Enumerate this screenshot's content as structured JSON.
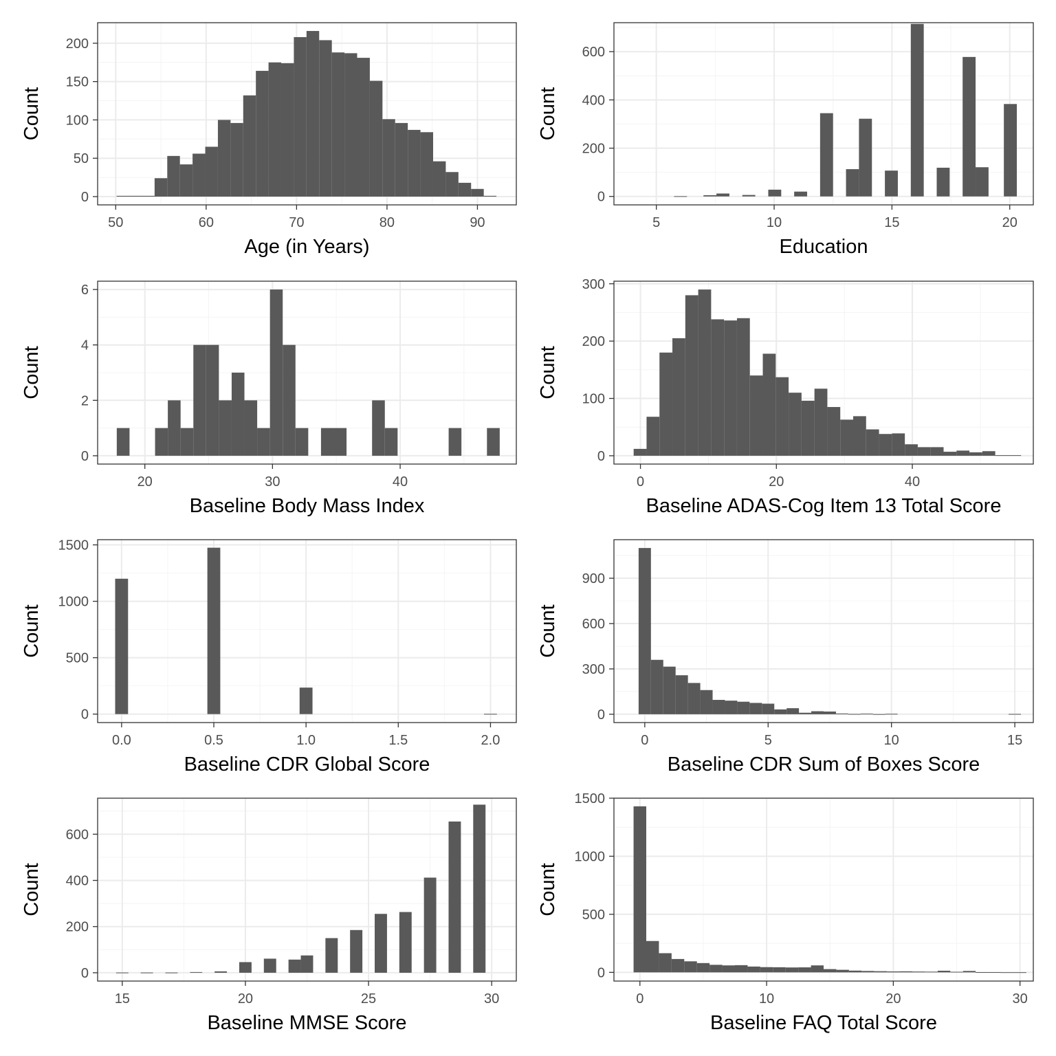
{
  "chart_data": [
    {
      "type": "bar",
      "xlabel": "Age (in Years)",
      "ylabel": "Count",
      "xlim": [
        48,
        94.3
      ],
      "ylim": [
        -10.8,
        226.8
      ],
      "x_ticks": [
        50,
        60,
        70,
        80,
        90
      ],
      "y_ticks": [
        0,
        50,
        100,
        150,
        200
      ],
      "grid": true,
      "bins": [
        {
          "x0": 50.1,
          "x1": 51.5,
          "count": 1
        },
        {
          "x0": 51.5,
          "x1": 52.9,
          "count": 1
        },
        {
          "x0": 52.9,
          "x1": 54.3,
          "count": 1
        },
        {
          "x0": 54.3,
          "x1": 55.7,
          "count": 24
        },
        {
          "x0": 55.7,
          "x1": 57.1,
          "count": 53
        },
        {
          "x0": 57.1,
          "x1": 58.5,
          "count": 42
        },
        {
          "x0": 58.5,
          "x1": 59.9,
          "count": 56
        },
        {
          "x0": 59.9,
          "x1": 61.3,
          "count": 65
        },
        {
          "x0": 61.3,
          "x1": 62.7,
          "count": 100
        },
        {
          "x0": 62.7,
          "x1": 64.1,
          "count": 96
        },
        {
          "x0": 64.1,
          "x1": 65.5,
          "count": 132
        },
        {
          "x0": 65.5,
          "x1": 66.9,
          "count": 164
        },
        {
          "x0": 66.9,
          "x1": 68.3,
          "count": 175
        },
        {
          "x0": 68.3,
          "x1": 69.7,
          "count": 174
        },
        {
          "x0": 69.7,
          "x1": 71.1,
          "count": 208
        },
        {
          "x0": 71.1,
          "x1": 72.5,
          "count": 216
        },
        {
          "x0": 72.5,
          "x1": 73.9,
          "count": 204
        },
        {
          "x0": 73.9,
          "x1": 75.3,
          "count": 188
        },
        {
          "x0": 75.3,
          "x1": 76.7,
          "count": 187
        },
        {
          "x0": 76.7,
          "x1": 78.1,
          "count": 181
        },
        {
          "x0": 78.1,
          "x1": 79.5,
          "count": 151
        },
        {
          "x0": 79.5,
          "x1": 80.9,
          "count": 101
        },
        {
          "x0": 80.9,
          "x1": 82.3,
          "count": 96
        },
        {
          "x0": 82.3,
          "x1": 83.7,
          "count": 87
        },
        {
          "x0": 83.7,
          "x1": 85.1,
          "count": 84
        },
        {
          "x0": 85.1,
          "x1": 86.5,
          "count": 46
        },
        {
          "x0": 86.5,
          "x1": 87.9,
          "count": 32
        },
        {
          "x0": 87.9,
          "x1": 89.3,
          "count": 18
        },
        {
          "x0": 89.3,
          "x1": 90.7,
          "count": 10
        },
        {
          "x0": 90.7,
          "x1": 92.1,
          "count": 1
        }
      ]
    },
    {
      "type": "bar",
      "xlabel": "Education",
      "ylabel": "Count",
      "xlim": [
        3.2,
        21
      ],
      "ylim": [
        -35,
        720
      ],
      "x_ticks": [
        5,
        10,
        15,
        20
      ],
      "y_ticks": [
        0,
        200,
        400,
        600
      ],
      "grid": true,
      "bins": [
        {
          "x0": 5.75,
          "x1": 6.3,
          "count": 1
        },
        {
          "x0": 7.0,
          "x1": 7.55,
          "count": 5
        },
        {
          "x0": 7.55,
          "x1": 8.1,
          "count": 12
        },
        {
          "x0": 8.65,
          "x1": 9.2,
          "count": 6
        },
        {
          "x0": 9.75,
          "x1": 10.3,
          "count": 28
        },
        {
          "x0": 10.85,
          "x1": 11.4,
          "count": 20
        },
        {
          "x0": 11.95,
          "x1": 12.5,
          "count": 345
        },
        {
          "x0": 13.05,
          "x1": 13.6,
          "count": 113
        },
        {
          "x0": 13.6,
          "x1": 14.15,
          "count": 322
        },
        {
          "x0": 14.7,
          "x1": 15.25,
          "count": 107
        },
        {
          "x0": 15.8,
          "x1": 16.35,
          "count": 715
        },
        {
          "x0": 16.9,
          "x1": 17.45,
          "count": 119
        },
        {
          "x0": 18.0,
          "x1": 18.55,
          "count": 578
        },
        {
          "x0": 18.55,
          "x1": 19.1,
          "count": 121
        },
        {
          "x0": 19.75,
          "x1": 20.3,
          "count": 383
        }
      ]
    },
    {
      "type": "bar",
      "xlabel": "Baseline Body Mass Index",
      "ylabel": "Count",
      "xlim": [
        16.3,
        49.1
      ],
      "ylim": [
        -0.3,
        6.3
      ],
      "x_ticks": [
        20,
        30,
        40
      ],
      "y_ticks": [
        0,
        2,
        4,
        6
      ],
      "grid": true,
      "bins": [
        {
          "x0": 17.8,
          "x1": 18.8,
          "count": 1
        },
        {
          "x0": 20.8,
          "x1": 21.8,
          "count": 1
        },
        {
          "x0": 21.8,
          "x1": 22.8,
          "count": 2
        },
        {
          "x0": 22.8,
          "x1": 23.8,
          "count": 1
        },
        {
          "x0": 23.8,
          "x1": 24.8,
          "count": 4
        },
        {
          "x0": 24.8,
          "x1": 25.8,
          "count": 4
        },
        {
          "x0": 25.8,
          "x1": 26.8,
          "count": 2
        },
        {
          "x0": 26.8,
          "x1": 27.8,
          "count": 3
        },
        {
          "x0": 27.8,
          "x1": 28.8,
          "count": 2
        },
        {
          "x0": 28.8,
          "x1": 29.8,
          "count": 1
        },
        {
          "x0": 29.8,
          "x1": 30.8,
          "count": 6
        },
        {
          "x0": 30.8,
          "x1": 31.8,
          "count": 4
        },
        {
          "x0": 31.8,
          "x1": 32.8,
          "count": 1
        },
        {
          "x0": 33.8,
          "x1": 34.8,
          "count": 1
        },
        {
          "x0": 34.8,
          "x1": 35.8,
          "count": 1
        },
        {
          "x0": 37.8,
          "x1": 38.8,
          "count": 2
        },
        {
          "x0": 38.8,
          "x1": 39.8,
          "count": 1
        },
        {
          "x0": 43.8,
          "x1": 44.8,
          "count": 1
        },
        {
          "x0": 46.8,
          "x1": 47.8,
          "count": 1
        }
      ]
    },
    {
      "type": "bar",
      "xlabel": "Baseline ADAS-Cog Item 13 Total Score",
      "ylabel": "Count",
      "xlim": [
        -3.9,
        57.8
      ],
      "ylim": [
        -14.5,
        304.5
      ],
      "x_ticks": [
        0,
        20,
        40
      ],
      "y_ticks": [
        0,
        100,
        200,
        300
      ],
      "grid": true,
      "bins": [
        {
          "x0": -1.0,
          "x1": 0.9,
          "count": 12
        },
        {
          "x0": 0.9,
          "x1": 2.8,
          "count": 68
        },
        {
          "x0": 2.8,
          "x1": 4.7,
          "count": 180
        },
        {
          "x0": 4.7,
          "x1": 6.6,
          "count": 205
        },
        {
          "x0": 6.6,
          "x1": 8.5,
          "count": 280
        },
        {
          "x0": 8.5,
          "x1": 10.4,
          "count": 290
        },
        {
          "x0": 10.4,
          "x1": 12.3,
          "count": 238
        },
        {
          "x0": 12.3,
          "x1": 14.2,
          "count": 236
        },
        {
          "x0": 14.2,
          "x1": 16.1,
          "count": 240
        },
        {
          "x0": 16.1,
          "x1": 18.0,
          "count": 140
        },
        {
          "x0": 18.0,
          "x1": 19.9,
          "count": 178
        },
        {
          "x0": 19.9,
          "x1": 21.8,
          "count": 137
        },
        {
          "x0": 21.8,
          "x1": 23.7,
          "count": 110
        },
        {
          "x0": 23.7,
          "x1": 25.6,
          "count": 96
        },
        {
          "x0": 25.6,
          "x1": 27.5,
          "count": 117
        },
        {
          "x0": 27.5,
          "x1": 29.4,
          "count": 85
        },
        {
          "x0": 29.4,
          "x1": 31.3,
          "count": 63
        },
        {
          "x0": 31.3,
          "x1": 33.2,
          "count": 69
        },
        {
          "x0": 33.2,
          "x1": 35.1,
          "count": 46
        },
        {
          "x0": 35.1,
          "x1": 37.0,
          "count": 38
        },
        {
          "x0": 37.0,
          "x1": 38.9,
          "count": 39
        },
        {
          "x0": 38.9,
          "x1": 40.8,
          "count": 20
        },
        {
          "x0": 40.8,
          "x1": 42.7,
          "count": 15
        },
        {
          "x0": 42.7,
          "x1": 44.6,
          "count": 15
        },
        {
          "x0": 44.6,
          "x1": 46.5,
          "count": 7
        },
        {
          "x0": 46.5,
          "x1": 48.4,
          "count": 9
        },
        {
          "x0": 48.4,
          "x1": 50.3,
          "count": 6
        },
        {
          "x0": 50.3,
          "x1": 52.2,
          "count": 8
        },
        {
          "x0": 52.2,
          "x1": 54.1,
          "count": 1
        },
        {
          "x0": 54.1,
          "x1": 56.0,
          "count": 1
        }
      ]
    },
    {
      "type": "bar",
      "xlabel": "Baseline CDR Global Score",
      "ylabel": "Count",
      "xlim": [
        -0.13,
        2.14
      ],
      "ylim": [
        -75,
        1546
      ],
      "x_ticks": [
        0.0,
        0.5,
        1.0,
        1.5,
        2.0
      ],
      "x_tick_labels": [
        "0.0",
        "0.5",
        "1.0",
        "1.5",
        "2.0"
      ],
      "y_ticks": [
        0,
        500,
        1000,
        1500
      ],
      "grid": true,
      "bins": [
        {
          "x0": -0.035,
          "x1": 0.035,
          "count": 1200
        },
        {
          "x0": 0.465,
          "x1": 0.535,
          "count": 1475
        },
        {
          "x0": 0.965,
          "x1": 1.035,
          "count": 235
        },
        {
          "x0": 1.965,
          "x1": 2.035,
          "count": 2
        }
      ]
    },
    {
      "type": "bar",
      "xlabel": "Baseline CDR Sum of Boxes Score",
      "ylabel": "Count",
      "xlim": [
        -1.25,
        15.75
      ],
      "ylim": [
        -55,
        1155
      ],
      "x_ticks": [
        0,
        5,
        10,
        15
      ],
      "y_ticks": [
        0,
        300,
        600,
        900
      ],
      "grid": true,
      "bins": [
        {
          "x0": -0.25,
          "x1": 0.25,
          "count": 1100
        },
        {
          "x0": 0.25,
          "x1": 0.75,
          "count": 360
        },
        {
          "x0": 0.75,
          "x1": 1.25,
          "count": 315
        },
        {
          "x0": 1.25,
          "x1": 1.75,
          "count": 258
        },
        {
          "x0": 1.75,
          "x1": 2.25,
          "count": 207
        },
        {
          "x0": 2.25,
          "x1": 2.75,
          "count": 160
        },
        {
          "x0": 2.75,
          "x1": 3.25,
          "count": 95
        },
        {
          "x0": 3.25,
          "x1": 3.75,
          "count": 90
        },
        {
          "x0": 3.75,
          "x1": 4.25,
          "count": 83
        },
        {
          "x0": 4.25,
          "x1": 4.75,
          "count": 75
        },
        {
          "x0": 4.75,
          "x1": 5.25,
          "count": 70
        },
        {
          "x0": 5.25,
          "x1": 5.75,
          "count": 32
        },
        {
          "x0": 5.75,
          "x1": 6.25,
          "count": 40
        },
        {
          "x0": 6.25,
          "x1": 6.75,
          "count": 10
        },
        {
          "x0": 6.75,
          "x1": 7.25,
          "count": 20
        },
        {
          "x0": 7.25,
          "x1": 7.75,
          "count": 18
        },
        {
          "x0": 7.75,
          "x1": 8.25,
          "count": 5
        },
        {
          "x0": 8.25,
          "x1": 8.75,
          "count": 2
        },
        {
          "x0": 8.75,
          "x1": 9.25,
          "count": 4
        },
        {
          "x0": 9.25,
          "x1": 9.75,
          "count": 1
        },
        {
          "x0": 9.75,
          "x1": 10.25,
          "count": 3
        },
        {
          "x0": 14.75,
          "x1": 15.25,
          "count": 2
        }
      ]
    },
    {
      "type": "bar",
      "xlabel": "Baseline MMSE Score",
      "ylabel": "Count",
      "xlim": [
        14.0,
        31.0
      ],
      "ylim": [
        -36,
        756
      ],
      "x_ticks": [
        15,
        20,
        25,
        30
      ],
      "y_ticks": [
        0,
        200,
        400,
        600
      ],
      "grid": true,
      "bins": [
        {
          "x0": 14.75,
          "x1": 15.25,
          "count": 1
        },
        {
          "x0": 15.75,
          "x1": 16.25,
          "count": 1
        },
        {
          "x0": 16.75,
          "x1": 17.25,
          "count": 1
        },
        {
          "x0": 17.75,
          "x1": 18.25,
          "count": 3
        },
        {
          "x0": 18.75,
          "x1": 19.25,
          "count": 6
        },
        {
          "x0": 19.75,
          "x1": 20.25,
          "count": 46
        },
        {
          "x0": 20.75,
          "x1": 21.25,
          "count": 61
        },
        {
          "x0": 21.75,
          "x1": 22.25,
          "count": 57
        },
        {
          "x0": 22.25,
          "x1": 22.75,
          "count": 75
        },
        {
          "x0": 23.25,
          "x1": 23.75,
          "count": 150
        },
        {
          "x0": 24.25,
          "x1": 24.75,
          "count": 185
        },
        {
          "x0": 25.25,
          "x1": 25.75,
          "count": 255
        },
        {
          "x0": 26.25,
          "x1": 26.75,
          "count": 263
        },
        {
          "x0": 27.25,
          "x1": 27.75,
          "count": 412
        },
        {
          "x0": 28.25,
          "x1": 28.75,
          "count": 655
        },
        {
          "x0": 29.25,
          "x1": 29.75,
          "count": 728
        }
      ]
    },
    {
      "type": "bar",
      "xlabel": "Baseline FAQ Total Score",
      "ylabel": "Count",
      "xlim": [
        -2.05,
        31.05
      ],
      "ylim": [
        -75,
        1500
      ],
      "x_ticks": [
        0,
        10,
        20,
        30
      ],
      "y_ticks": [
        0,
        500,
        1000,
        1500
      ],
      "grid": true,
      "bins": [
        {
          "x0": -0.5,
          "x1": 0.5,
          "count": 1430
        },
        {
          "x0": 0.5,
          "x1": 1.5,
          "count": 270
        },
        {
          "x0": 1.5,
          "x1": 2.5,
          "count": 165
        },
        {
          "x0": 2.5,
          "x1": 3.5,
          "count": 115
        },
        {
          "x0": 3.5,
          "x1": 4.5,
          "count": 95
        },
        {
          "x0": 4.5,
          "x1": 5.5,
          "count": 80
        },
        {
          "x0": 5.5,
          "x1": 6.5,
          "count": 65
        },
        {
          "x0": 6.5,
          "x1": 7.5,
          "count": 60
        },
        {
          "x0": 7.5,
          "x1": 8.5,
          "count": 62
        },
        {
          "x0": 8.5,
          "x1": 9.5,
          "count": 50
        },
        {
          "x0": 9.5,
          "x1": 10.5,
          "count": 45
        },
        {
          "x0": 10.5,
          "x1": 11.5,
          "count": 44
        },
        {
          "x0": 11.5,
          "x1": 12.5,
          "count": 42
        },
        {
          "x0": 12.5,
          "x1": 13.5,
          "count": 43
        },
        {
          "x0": 13.5,
          "x1": 14.5,
          "count": 60
        },
        {
          "x0": 14.5,
          "x1": 15.5,
          "count": 28
        },
        {
          "x0": 15.5,
          "x1": 16.5,
          "count": 22
        },
        {
          "x0": 16.5,
          "x1": 17.5,
          "count": 15
        },
        {
          "x0": 17.5,
          "x1": 18.5,
          "count": 12
        },
        {
          "x0": 18.5,
          "x1": 19.5,
          "count": 10
        },
        {
          "x0": 19.5,
          "x1": 20.5,
          "count": 8
        },
        {
          "x0": 20.5,
          "x1": 21.5,
          "count": 9
        },
        {
          "x0": 21.5,
          "x1": 22.5,
          "count": 7
        },
        {
          "x0": 22.5,
          "x1": 23.5,
          "count": 6
        },
        {
          "x0": 23.5,
          "x1": 24.5,
          "count": 14
        },
        {
          "x0": 24.5,
          "x1": 25.5,
          "count": 5
        },
        {
          "x0": 25.5,
          "x1": 26.5,
          "count": 12
        },
        {
          "x0": 26.5,
          "x1": 27.5,
          "count": 2
        },
        {
          "x0": 27.5,
          "x1": 28.5,
          "count": 2
        },
        {
          "x0": 28.5,
          "x1": 29.5,
          "count": 1
        },
        {
          "x0": 29.5,
          "x1": 30.5,
          "count": 1
        }
      ]
    }
  ]
}
